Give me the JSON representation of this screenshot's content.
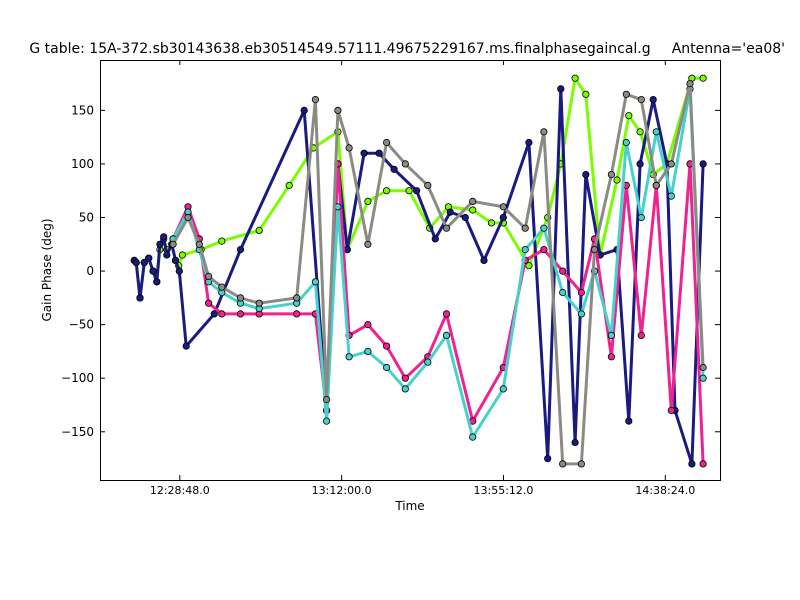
{
  "chart_data": {
    "type": "line",
    "title": "G table: 15A-372.sb30143638.eb30514549.57111.49675229167.ms.finalphasegaincal.g",
    "subtitle": "Antenna='ea08'",
    "xlabel": "Time",
    "ylabel": "Gain Phase (deg)",
    "xlim": [
      "12:07:30",
      "14:53:00"
    ],
    "ylim": [
      -195,
      197
    ],
    "x_ticks": [
      "12:28:48.0",
      "13:12:00.0",
      "13:55:12.0",
      "14:38:24.0"
    ],
    "y_ticks": [
      -150,
      -100,
      -50,
      0,
      50,
      100,
      150
    ],
    "grid": false,
    "legend": "none",
    "series": [
      {
        "color": "#7cfc00",
        "x": [
          "12:16:40",
          "12:17:10",
          "12:18:10",
          "12:19:20",
          "12:20:30",
          "12:21:40",
          "12:22:40",
          "12:23:30",
          "12:24:30",
          "12:25:20",
          "12:26:40",
          "12:27:40",
          "12:28:30",
          "12:29:30",
          "12:34:30",
          "12:40:00",
          "12:50:00",
          "12:58:00",
          "13:04:30",
          "13:11:00",
          "13:13:30",
          "13:19:00",
          "13:24:00",
          "13:30:00",
          "13:35:30",
          "13:40:30",
          "13:47:00",
          "13:52:00",
          "13:55:10",
          "14:02:00",
          "14:07:00",
          "14:10:30",
          "14:14:20",
          "14:17:10",
          "14:21:00",
          "14:25:30",
          "14:28:40",
          "14:31:40",
          "14:35:10",
          "14:38:50",
          "14:45:30",
          "14:48:30"
        ],
        "y": [
          10,
          8,
          -25,
          8,
          12,
          0,
          -10,
          20,
          30,
          20,
          25,
          10,
          5,
          15,
          20,
          28,
          38,
          80,
          115,
          130,
          20,
          65,
          75,
          75,
          40,
          60,
          57,
          45,
          45,
          5,
          50,
          100,
          180,
          165,
          15,
          85,
          145,
          130,
          90,
          100,
          180,
          180
        ]
      },
      {
        "color": "#1a1a80",
        "x": [
          "12:16:40",
          "12:17:10",
          "12:18:10",
          "12:19:20",
          "12:20:30",
          "12:21:40",
          "12:22:40",
          "12:23:30",
          "12:24:30",
          "12:25:20",
          "12:26:40",
          "12:27:40",
          "12:28:40",
          "12:30:30",
          "12:38:00",
          "12:45:00",
          "13:02:00",
          "13:08:00",
          "13:11:00",
          "13:13:30",
          "13:18:00",
          "13:22:00",
          "13:26:00",
          "13:32:00",
          "13:37:00",
          "13:41:00",
          "13:45:00",
          "13:50:00",
          "13:55:10",
          "14:02:00",
          "14:07:00",
          "14:10:30",
          "14:14:20",
          "14:17:10",
          "14:21:00",
          "14:25:30",
          "14:28:40",
          "14:31:40",
          "14:35:10",
          "14:38:50",
          "14:41:00",
          "14:45:30",
          "14:48:30"
        ],
        "y": [
          10,
          8,
          -25,
          8,
          12,
          0,
          -10,
          25,
          32,
          15,
          25,
          10,
          0,
          -70,
          -40,
          20,
          150,
          -130,
          100,
          20,
          110,
          110,
          95,
          75,
          30,
          55,
          50,
          10,
          50,
          120,
          -175,
          170,
          -160,
          90,
          15,
          20,
          -140,
          100,
          160,
          100,
          -130,
          -180,
          100
        ]
      },
      {
        "color": "#ee2290",
        "x": [
          "12:27:00",
          "12:31:00",
          "12:34:00",
          "12:36:30",
          "12:40:00",
          "12:45:00",
          "12:50:00",
          "13:00:00",
          "13:05:00",
          "13:08:00",
          "13:11:00",
          "13:14:00",
          "13:19:00",
          "13:24:00",
          "13:29:00",
          "13:35:00",
          "13:40:00",
          "13:47:00",
          "13:55:10",
          "14:01:00",
          "14:06:00",
          "14:11:00",
          "14:16:00",
          "14:19:30",
          "14:24:00",
          "14:28:00",
          "14:32:00",
          "14:36:00",
          "14:40:00",
          "14:45:00",
          "14:48:30"
        ],
        "y": [
          30,
          60,
          30,
          -30,
          -40,
          -40,
          -40,
          -40,
          -40,
          -130,
          100,
          -60,
          -50,
          -70,
          -100,
          -80,
          -40,
          -140,
          -90,
          10,
          20,
          0,
          -20,
          30,
          -80,
          80,
          -60,
          80,
          -130,
          100,
          -180
        ]
      },
      {
        "color": "#48d1cc",
        "x": [
          "12:27:00",
          "12:31:00",
          "12:34:00",
          "12:36:30",
          "12:40:00",
          "12:45:00",
          "12:50:00",
          "13:00:00",
          "13:05:00",
          "13:08:00",
          "13:11:00",
          "13:14:00",
          "13:19:00",
          "13:24:00",
          "13:29:00",
          "13:35:00",
          "13:40:00",
          "13:47:00",
          "13:55:10",
          "14:01:00",
          "14:06:00",
          "14:11:00",
          "14:16:00",
          "14:19:30",
          "14:24:00",
          "14:28:00",
          "14:32:00",
          "14:36:00",
          "14:40:00",
          "14:45:00",
          "14:48:30"
        ],
        "y": [
          30,
          55,
          20,
          -10,
          -20,
          -30,
          -35,
          -30,
          -10,
          -140,
          60,
          -80,
          -75,
          -90,
          -110,
          -85,
          -60,
          -155,
          -110,
          20,
          40,
          -20,
          -40,
          0,
          -60,
          120,
          50,
          130,
          70,
          170,
          -100
        ]
      },
      {
        "color": "#8b8b83",
        "x": [
          "12:27:00",
          "12:31:00",
          "12:34:00",
          "12:36:30",
          "12:40:00",
          "12:45:00",
          "12:50:00",
          "13:00:00",
          "13:05:00",
          "13:08:00",
          "13:11:00",
          "13:14:00",
          "13:19:00",
          "13:24:00",
          "13:29:00",
          "13:35:00",
          "13:40:00",
          "13:47:00",
          "13:55:10",
          "14:01:00",
          "14:06:00",
          "14:11:00",
          "14:16:00",
          "14:19:30",
          "14:24:00",
          "14:28:00",
          "14:32:00",
          "14:36:00",
          "14:40:00",
          "14:45:00",
          "14:48:30"
        ],
        "y": [
          25,
          50,
          25,
          -5,
          -15,
          -25,
          -30,
          -25,
          160,
          -120,
          150,
          115,
          25,
          120,
          100,
          80,
          40,
          65,
          60,
          40,
          130,
          -180,
          -180,
          20,
          90,
          165,
          160,
          80,
          100,
          175,
          -90
        ]
      }
    ]
  }
}
